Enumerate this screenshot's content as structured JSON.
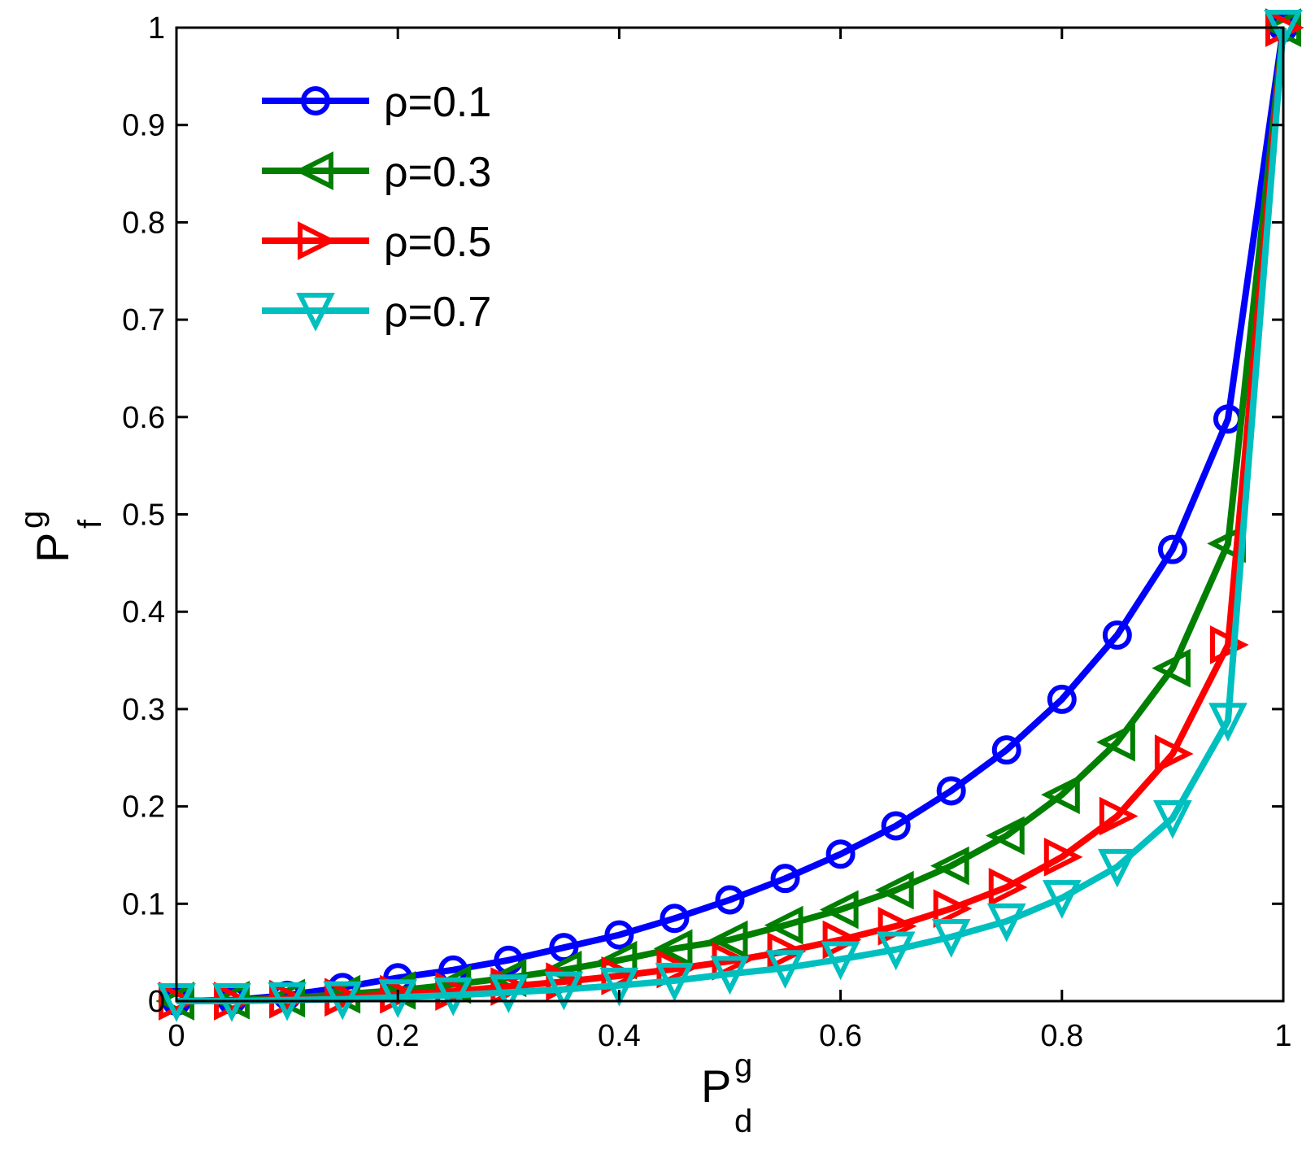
{
  "chart_data": {
    "type": "line",
    "title": "",
    "xlabel": {
      "main": "P",
      "sup": "g",
      "sub": "d"
    },
    "ylabel": {
      "main": "P",
      "sup": "g",
      "sub": "f"
    },
    "xlim": [
      0,
      1
    ],
    "ylim": [
      0,
      1
    ],
    "x_ticks": [
      0,
      0.2,
      0.4,
      0.6,
      0.8,
      1
    ],
    "x_tick_labels": [
      "0",
      "0.2",
      "0.4",
      "0.6",
      "0.8",
      "1"
    ],
    "y_ticks": [
      0,
      0.1,
      0.2,
      0.3,
      0.4,
      0.5,
      0.6,
      0.7,
      0.8,
      0.9,
      1
    ],
    "y_tick_labels": [
      "0",
      "0.1",
      "0.2",
      "0.3",
      "0.4",
      "0.5",
      "0.6",
      "0.7",
      "0.8",
      "0.9",
      "1"
    ],
    "grid": false,
    "legend_position": "top-left",
    "x": [
      0,
      0.05,
      0.1,
      0.15,
      0.2,
      0.25,
      0.3,
      0.35,
      0.4,
      0.45,
      0.5,
      0.55,
      0.6,
      0.65,
      0.7,
      0.75,
      0.8,
      0.85,
      0.9,
      0.95,
      1
    ],
    "series": [
      {
        "name": "ρ=0.1",
        "color": "#0000ff",
        "marker": "circle",
        "values": [
          0,
          0.001,
          0.006,
          0.014,
          0.024,
          0.032,
          0.042,
          0.055,
          0.068,
          0.085,
          0.104,
          0.126,
          0.151,
          0.18,
          0.216,
          0.258,
          0.31,
          0.376,
          0.464,
          0.598,
          1.0
        ]
      },
      {
        "name": "ρ=0.3",
        "color": "#007f00",
        "marker": "triangle-left",
        "values": [
          0,
          0.001,
          0.003,
          0.007,
          0.011,
          0.017,
          0.024,
          0.032,
          0.042,
          0.054,
          0.063,
          0.078,
          0.094,
          0.114,
          0.139,
          0.17,
          0.212,
          0.266,
          0.342,
          0.47,
          1.0
        ]
      },
      {
        "name": "ρ=0.5",
        "color": "#ff0000",
        "marker": "triangle-right",
        "values": [
          0,
          0.0,
          0.002,
          0.004,
          0.007,
          0.01,
          0.015,
          0.02,
          0.026,
          0.033,
          0.041,
          0.051,
          0.063,
          0.077,
          0.095,
          0.117,
          0.148,
          0.19,
          0.254,
          0.366,
          1.0
        ]
      },
      {
        "name": "ρ=0.7",
        "color": "#00bfbf",
        "marker": "triangle-down",
        "values": [
          0,
          0.0,
          0.001,
          0.002,
          0.004,
          0.006,
          0.009,
          0.012,
          0.016,
          0.021,
          0.028,
          0.034,
          0.043,
          0.053,
          0.066,
          0.082,
          0.106,
          0.138,
          0.188,
          0.288,
          1.0
        ]
      }
    ]
  }
}
